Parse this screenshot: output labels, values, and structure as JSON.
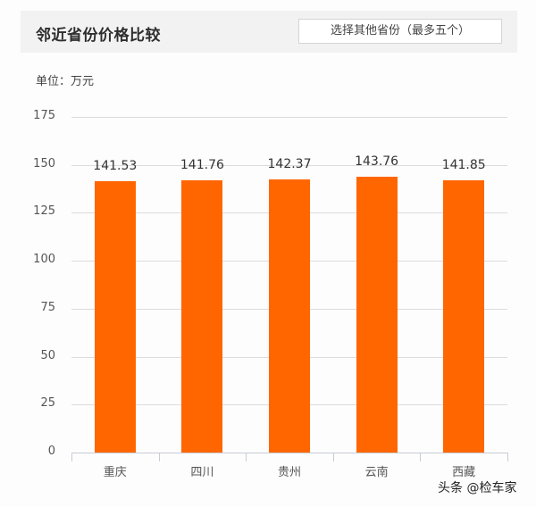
{
  "header": {
    "title": "邻近省份价格比较",
    "select_button_label": "选择其他省份（最多五个）"
  },
  "unit_label": "单位：万元",
  "watermark": "头条 @检车家",
  "colors": {
    "bar": "#ff6600",
    "grid": "#dcdcdf",
    "header_bg": "#f2f2f3"
  },
  "chart_data": {
    "type": "bar",
    "title": "邻近省份价格比较",
    "ylabel": "单位：万元",
    "xlabel": "",
    "categories": [
      "重庆",
      "四川",
      "贵州",
      "云南",
      "西藏"
    ],
    "values": [
      141.53,
      141.76,
      142.37,
      143.76,
      141.85
    ],
    "data_labels": [
      "141.53",
      "141.76",
      "142.37",
      "143.76",
      "141.85"
    ],
    "yticks": [
      0,
      25,
      50,
      75,
      100,
      125,
      150,
      175
    ],
    "ylim": [
      0,
      175
    ],
    "grid": true,
    "legend": "none"
  }
}
